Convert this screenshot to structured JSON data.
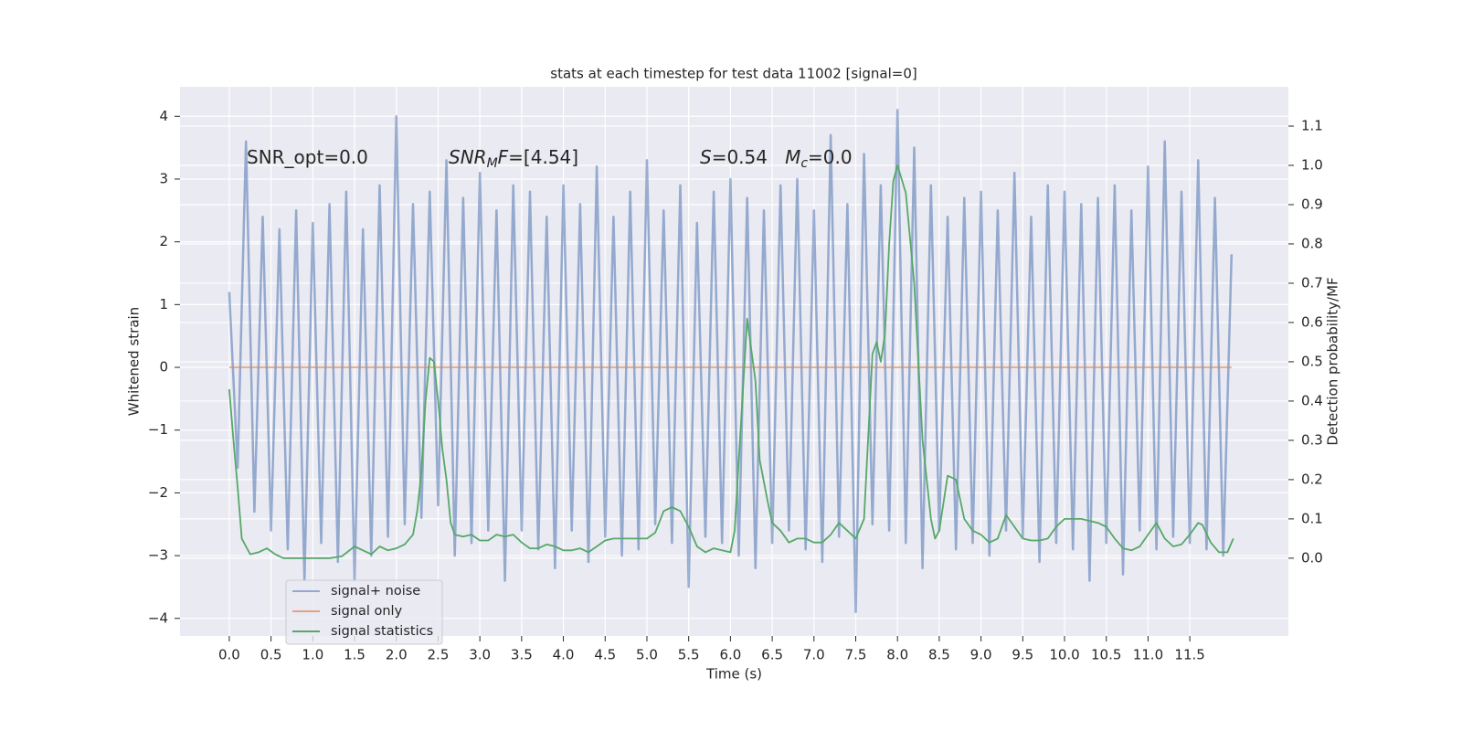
{
  "chart_data": {
    "type": "line",
    "title": "stats at each timestep for test data 11002 [signal=0]",
    "xlabel": "Time (s)",
    "ylabel": "Whitened strain",
    "y2label": "Detection probability/MF",
    "background": "#eaeaf2",
    "grid": true,
    "legend": "lower left",
    "annotations": [
      [
        {
          "text": "SNR_opt=0.0"
        }
      ],
      [
        {
          "text": "SNR",
          "italic": true
        },
        {
          "text": "M",
          "italic": true,
          "sub": true
        },
        {
          "text": "F",
          "italic": true
        },
        {
          "text": "=[4.54]"
        }
      ],
      [
        {
          "text": "S",
          "italic": true
        },
        {
          "text": "=0.54   "
        },
        {
          "text": "M",
          "italic": true
        },
        {
          "text": "c",
          "italic": true,
          "sub": true
        },
        {
          "text": "=0.0"
        }
      ]
    ],
    "xlim": [
      -0.59,
      12.68
    ],
    "xticks": [
      {
        "value": 0,
        "label": "0.0"
      },
      0.5,
      {
        "value": 1,
        "label": "1.0"
      },
      1.5,
      {
        "value": 2,
        "label": "2.0"
      },
      2.5,
      {
        "value": 3,
        "label": "3.0"
      },
      3.5,
      {
        "value": 4,
        "label": "4.0"
      },
      4.5,
      {
        "value": 5,
        "label": "5.0"
      },
      5.5,
      {
        "value": 6,
        "label": "6.0"
      },
      6.5,
      {
        "value": 7,
        "label": "7.0"
      },
      7.5,
      {
        "value": 8,
        "label": "8.0"
      },
      8.5,
      {
        "value": 9,
        "label": "9.0"
      },
      9.5,
      {
        "value": 10,
        "label": "10.0"
      },
      10.5,
      {
        "value": 11,
        "label": "11.0"
      },
      11.5
    ],
    "ylim": [
      -4.28,
      4.47
    ],
    "yticks": [
      {
        "value": -4,
        "label": "−4"
      },
      {
        "value": -3,
        "label": "−3"
      },
      {
        "value": -2,
        "label": "−2"
      },
      {
        "value": -1,
        "label": "−1"
      },
      0,
      1,
      2,
      3,
      4
    ],
    "y2lim": [
      -0.198,
      1.2
    ],
    "y2ticks": [
      {
        "value": 0,
        "label": "0.0"
      },
      0.1,
      0.2,
      0.3,
      0.4,
      0.5,
      0.6,
      0.7,
      0.8,
      0.9,
      {
        "value": 1,
        "label": "1.0"
      },
      1.1
    ],
    "series": [
      {
        "name": "signal+ noise",
        "color": "#4c72b0",
        "opacity": 0.55,
        "x": [
          0,
          0.1,
          0.2,
          0.3,
          0.4,
          0.5,
          0.6,
          0.7,
          0.8,
          0.9,
          1,
          1.1,
          1.2,
          1.3,
          1.4,
          1.5,
          1.6,
          1.7,
          1.8,
          1.9,
          2,
          2.1,
          2.2,
          2.3,
          2.4,
          2.5,
          2.6,
          2.7,
          2.8,
          2.9,
          3,
          3.1,
          3.2,
          3.3,
          3.4,
          3.5,
          3.6,
          3.7,
          3.8,
          3.9,
          4,
          4.1,
          4.2,
          4.3,
          4.4,
          4.5,
          4.6,
          4.7,
          4.8,
          4.9,
          5,
          5.1,
          5.2,
          5.3,
          5.4,
          5.5,
          5.6,
          5.7,
          5.8,
          5.9,
          6,
          6.1,
          6.2,
          6.3,
          6.4,
          6.5,
          6.6,
          6.7,
          6.8,
          6.9,
          7,
          7.1,
          7.2,
          7.3,
          7.4,
          7.5,
          7.6,
          7.7,
          7.8,
          7.9,
          8,
          8.1,
          8.2,
          8.3,
          8.4,
          8.5,
          8.6,
          8.7,
          8.8,
          8.9,
          9,
          9.1,
          9.2,
          9.3,
          9.4,
          9.5,
          9.6,
          9.7,
          9.8,
          9.9,
          10,
          10.1,
          10.2,
          10.3,
          10.4,
          10.5,
          10.6,
          10.7,
          10.8,
          10.9,
          11,
          11.1,
          11.2,
          11.3,
          11.4,
          11.5,
          11.6,
          11.7,
          11.8,
          11.9,
          12
        ],
        "values": [
          1.2,
          -1.6,
          3.6,
          -2.3,
          2.4,
          -2.6,
          2.2,
          -2.9,
          2.5,
          -3.4,
          2.3,
          -2.8,
          2.6,
          -3.1,
          2.8,
          -3.4,
          2.2,
          -3.0,
          2.9,
          -2.7,
          4.0,
          -2.5,
          2.6,
          -2.4,
          2.8,
          -2.2,
          3.3,
          -3.0,
          2.7,
          -2.8,
          3.1,
          -2.6,
          2.5,
          -3.4,
          2.9,
          -2.6,
          2.8,
          -2.9,
          2.4,
          -3.2,
          2.9,
          -2.6,
          2.6,
          -3.1,
          3.2,
          -2.7,
          2.4,
          -3.0,
          2.8,
          -2.9,
          3.3,
          -2.5,
          2.5,
          -2.8,
          2.9,
          -3.5,
          2.3,
          -2.7,
          2.8,
          -2.8,
          3.0,
          -3.0,
          2.7,
          -3.2,
          2.5,
          -2.8,
          2.9,
          -2.6,
          3.0,
          -2.9,
          2.5,
          -3.1,
          3.7,
          -2.7,
          2.6,
          -3.9,
          3.4,
          -2.5,
          2.9,
          -2.6,
          4.1,
          -2.8,
          3.5,
          -3.2,
          2.9,
          -2.6,
          2.4,
          -2.9,
          2.7,
          -2.8,
          2.8,
          -3.0,
          2.5,
          -2.6,
          3.1,
          -2.7,
          2.4,
          -3.1,
          2.9,
          -2.8,
          2.8,
          -2.9,
          2.6,
          -3.4,
          2.7,
          -2.8,
          2.9,
          -3.3,
          2.5,
          -2.6,
          3.2,
          -2.9,
          3.6,
          -2.7,
          2.8,
          -2.8,
          3.3,
          -2.9,
          2.7,
          -3.0,
          1.8
        ]
      },
      {
        "name": "signal only",
        "color": "#dd8452",
        "opacity": 0.7,
        "x": [
          0,
          12
        ],
        "values": [
          0,
          0
        ]
      },
      {
        "name": "signal statistics",
        "color": "#55a868",
        "opacity": 1,
        "axis": "y2",
        "x": [
          0,
          0.05,
          0.1,
          0.15,
          0.2,
          0.25,
          0.35,
          0.45,
          0.55,
          0.65,
          0.8,
          1,
          1.2,
          1.35,
          1.5,
          1.6,
          1.7,
          1.8,
          1.9,
          2,
          2.1,
          2.2,
          2.25,
          2.3,
          2.35,
          2.4,
          2.45,
          2.5,
          2.55,
          2.6,
          2.65,
          2.7,
          2.8,
          2.9,
          3,
          3.1,
          3.2,
          3.3,
          3.4,
          3.5,
          3.6,
          3.7,
          3.8,
          3.9,
          4,
          4.1,
          4.2,
          4.3,
          4.4,
          4.5,
          4.6,
          4.8,
          5,
          5.1,
          5.2,
          5.3,
          5.4,
          5.5,
          5.6,
          5.7,
          5.8,
          5.9,
          6,
          6.05,
          6.1,
          6.2,
          6.3,
          6.35,
          6.45,
          6.5,
          6.6,
          6.7,
          6.8,
          6.9,
          7,
          7.1,
          7.2,
          7.3,
          7.4,
          7.5,
          7.6,
          7.7,
          7.75,
          7.8,
          7.85,
          7.9,
          7.95,
          8,
          8.1,
          8.2,
          8.3,
          8.4,
          8.45,
          8.5,
          8.6,
          8.7,
          8.8,
          8.9,
          9,
          9.1,
          9.2,
          9.3,
          9.4,
          9.5,
          9.6,
          9.7,
          9.8,
          9.9,
          10,
          10.2,
          10.4,
          10.5,
          10.6,
          10.7,
          10.8,
          10.9,
          11,
          11.1,
          11.2,
          11.3,
          11.4,
          11.5,
          11.6,
          11.65,
          11.75,
          11.85,
          11.95,
          12.02
        ],
        "values": [
          0.43,
          0.3,
          0.18,
          0.05,
          0.03,
          0.01,
          0.015,
          0.025,
          0.01,
          0.0,
          0.0,
          0.0,
          0.0,
          0.005,
          0.03,
          0.02,
          0.01,
          0.03,
          0.02,
          0.025,
          0.035,
          0.06,
          0.12,
          0.22,
          0.4,
          0.51,
          0.5,
          0.4,
          0.28,
          0.2,
          0.09,
          0.06,
          0.055,
          0.06,
          0.045,
          0.045,
          0.06,
          0.055,
          0.06,
          0.04,
          0.025,
          0.025,
          0.035,
          0.03,
          0.02,
          0.02,
          0.025,
          0.015,
          0.03,
          0.045,
          0.05,
          0.05,
          0.05,
          0.065,
          0.12,
          0.13,
          0.12,
          0.08,
          0.03,
          0.015,
          0.025,
          0.02,
          0.015,
          0.07,
          0.25,
          0.61,
          0.45,
          0.25,
          0.14,
          0.09,
          0.07,
          0.04,
          0.05,
          0.05,
          0.04,
          0.04,
          0.06,
          0.09,
          0.07,
          0.05,
          0.1,
          0.52,
          0.55,
          0.5,
          0.57,
          0.8,
          0.96,
          1.0,
          0.93,
          0.7,
          0.3,
          0.1,
          0.05,
          0.07,
          0.21,
          0.2,
          0.1,
          0.07,
          0.06,
          0.04,
          0.05,
          0.11,
          0.08,
          0.05,
          0.045,
          0.045,
          0.05,
          0.08,
          0.1,
          0.1,
          0.09,
          0.08,
          0.05,
          0.025,
          0.02,
          0.03,
          0.06,
          0.09,
          0.05,
          0.03,
          0.035,
          0.06,
          0.09,
          0.085,
          0.04,
          0.015,
          0.015,
          0.05
        ]
      }
    ]
  }
}
